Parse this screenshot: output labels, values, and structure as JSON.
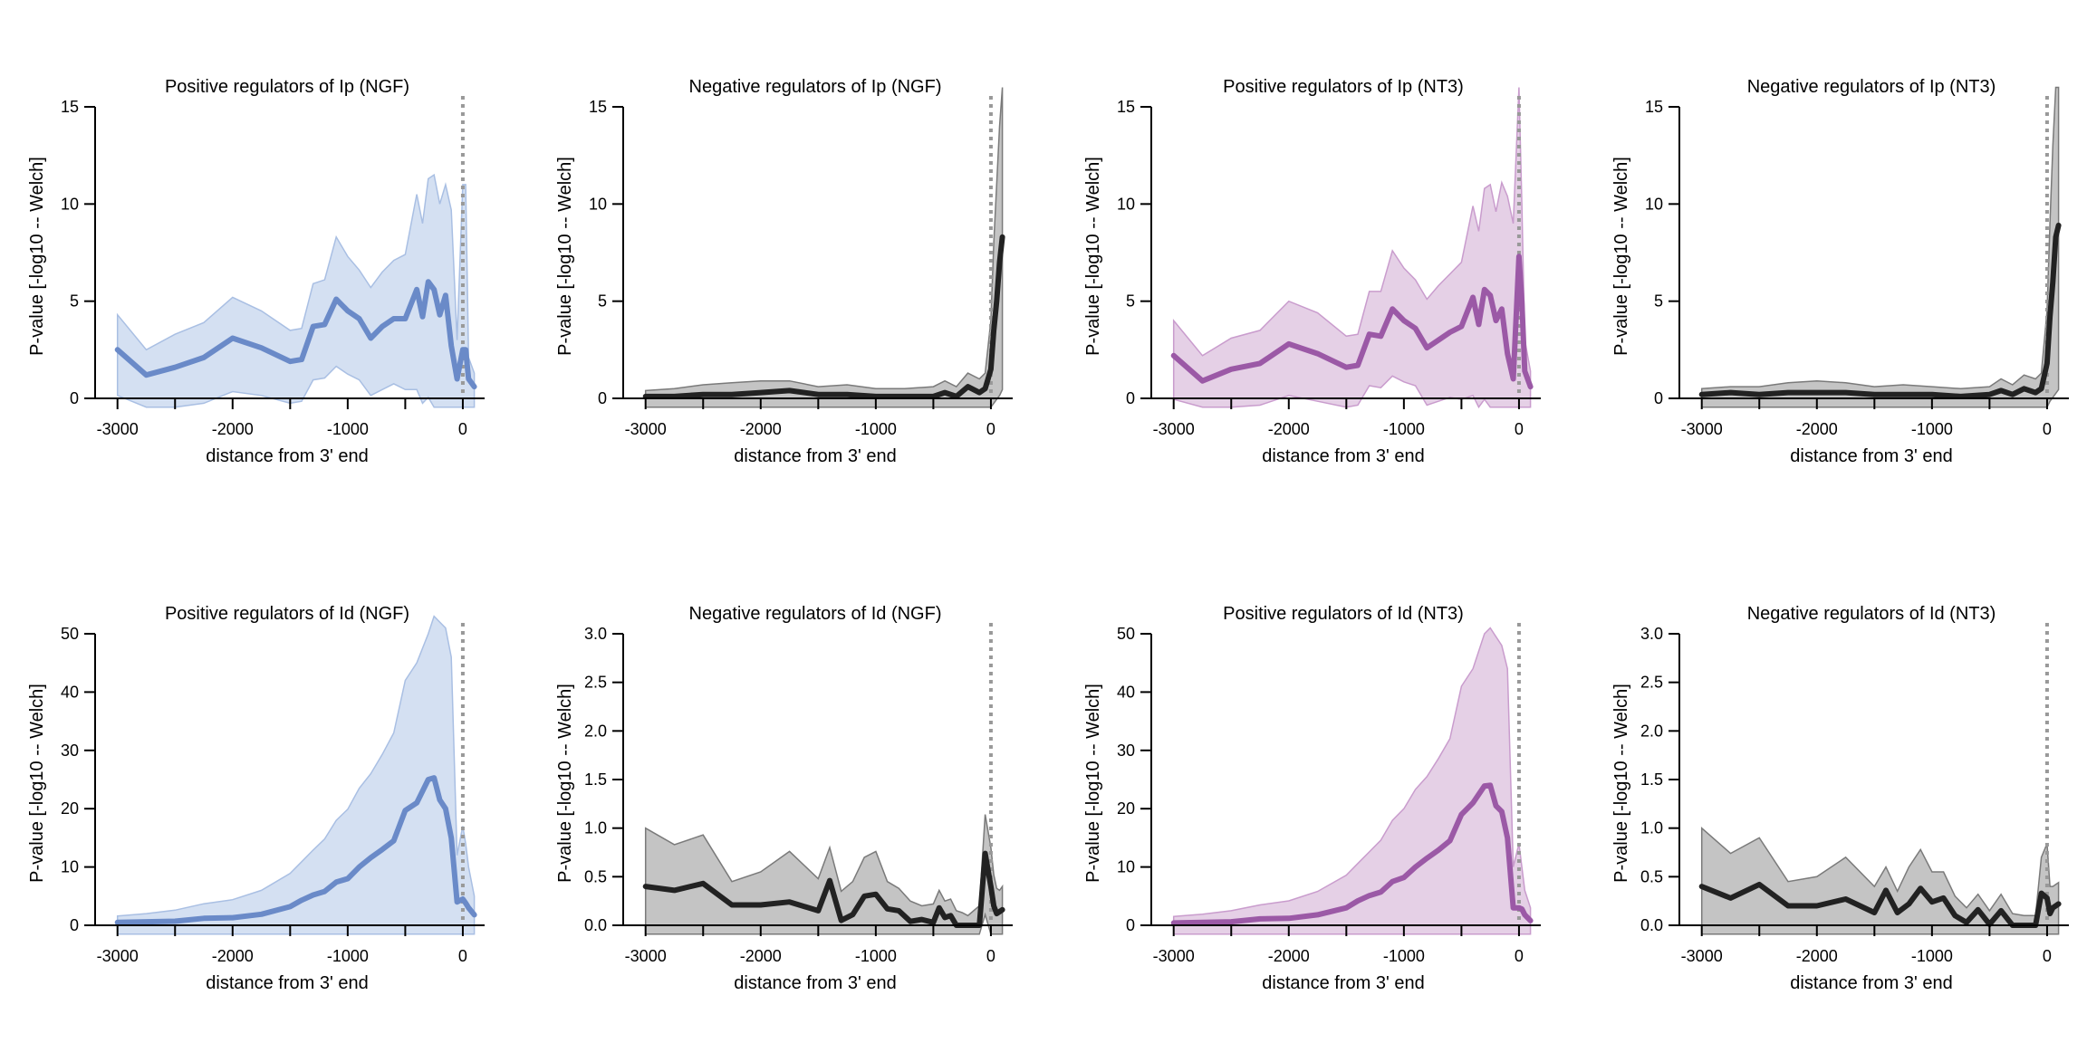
{
  "colors": {
    "blue_line": "#6a8ac8",
    "blue_fill": "#d4e0f2",
    "blue_edge": "#a9bfe3",
    "purple_line": "#9b59a6",
    "purple_fill": "#e5d0e6",
    "purple_edge": "#c99ccd",
    "black_line": "#222222",
    "gray_fill": "#c4c4c4",
    "gray_edge": "#7a7a7a",
    "vline": "#999999"
  },
  "chart_data": [
    {
      "type": "area",
      "title": "Positive regulators of Ip (NGF)",
      "xlabel": "distance from 3' end",
      "ylabel": "P-value [-log10 -- Welch]",
      "xlim": [
        -3100,
        150
      ],
      "ylim": [
        0,
        15
      ],
      "xticks": [
        -3000,
        -2000,
        -1000,
        0
      ],
      "xtick_labels": [
        "-3000",
        "-2000",
        "-1000",
        "0"
      ],
      "yticks": [
        0,
        5,
        10,
        15
      ],
      "ytick_labels": [
        "0",
        "5",
        "10",
        "15"
      ],
      "vline_x": 0,
      "color": "blue",
      "x": [
        -3000,
        -2750,
        -2500,
        -2250,
        -2000,
        -1750,
        -1500,
        -1400,
        -1300,
        -1200,
        -1100,
        -1000,
        -900,
        -800,
        -700,
        -600,
        -500,
        -400,
        -350,
        -300,
        -250,
        -200,
        -150,
        -100,
        -50,
        0,
        25,
        50,
        100
      ],
      "y": [
        2.5,
        1.2,
        1.6,
        2.1,
        3.1,
        2.6,
        1.9,
        2.0,
        3.7,
        3.8,
        5.1,
        4.5,
        4.1,
        3.1,
        3.7,
        4.1,
        4.1,
        5.6,
        4.2,
        6.0,
        5.6,
        4.3,
        5.3,
        2.7,
        1.0,
        2.5,
        2.5,
        1.0,
        0.6
      ],
      "upper": [
        4.3,
        2.5,
        3.3,
        3.9,
        5.2,
        4.5,
        3.5,
        3.6,
        5.9,
        6.1,
        8.3,
        7.3,
        6.6,
        5.7,
        6.5,
        7.1,
        7.4,
        10.5,
        9.0,
        11.3,
        11.5,
        10.0,
        11.0,
        9.7,
        3.0,
        11.0,
        11.0,
        2.1,
        1.3
      ],
      "lower": [
        0.6,
        0.0,
        0.0,
        0.2,
        0.8,
        0.6,
        0.2,
        0.3,
        1.4,
        1.5,
        2.1,
        1.7,
        1.4,
        0.6,
        0.9,
        1.2,
        0.9,
        0.9,
        0.2,
        0.5,
        0.0,
        0.0,
        0.0,
        0.0,
        0.0,
        0.0,
        0.0,
        0.0,
        0.0
      ]
    },
    {
      "type": "area",
      "title": "Negative regulators of Ip (NGF)",
      "xlabel": "distance from 3' end",
      "ylabel": "P-value [-log10 -- Welch]",
      "xlim": [
        -3100,
        150
      ],
      "ylim": [
        0,
        15
      ],
      "xticks": [
        -3000,
        -2000,
        -1000,
        0
      ],
      "xtick_labels": [
        "-3000",
        "-2000",
        "-1000",
        "0"
      ],
      "yticks": [
        0,
        5,
        10,
        15
      ],
      "ytick_labels": [
        "0",
        "5",
        "10",
        "15"
      ],
      "vline_x": 0,
      "color": "black",
      "x": [
        -3000,
        -2750,
        -2500,
        -2250,
        -2000,
        -1750,
        -1500,
        -1250,
        -1000,
        -750,
        -500,
        -400,
        -300,
        -200,
        -100,
        -50,
        0,
        25,
        50,
        75,
        100
      ],
      "y": [
        0.1,
        0.1,
        0.2,
        0.2,
        0.3,
        0.4,
        0.2,
        0.2,
        0.1,
        0.1,
        0.1,
        0.3,
        0.1,
        0.6,
        0.3,
        0.5,
        1.5,
        3.5,
        5.0,
        7.0,
        8.3
      ],
      "upper": [
        0.4,
        0.5,
        0.7,
        0.8,
        0.9,
        0.9,
        0.6,
        0.7,
        0.5,
        0.5,
        0.6,
        0.9,
        0.6,
        1.3,
        1.0,
        1.3,
        4.0,
        8.0,
        11.0,
        14.0,
        16.0
      ],
      "lower": [
        0.0,
        0.0,
        0.0,
        0.0,
        0.0,
        0.0,
        0.0,
        0.0,
        0.0,
        0.0,
        0.0,
        0.0,
        0.0,
        0.0,
        0.0,
        0.0,
        0.0,
        0.2,
        0.4,
        0.6,
        0.9
      ]
    },
    {
      "type": "area",
      "title": "Positive regulators of Ip (NT3)",
      "xlabel": "distance from 3' end",
      "ylabel": "P-value [-log10 -- Welch]",
      "xlim": [
        -3100,
        150
      ],
      "ylim": [
        0,
        15
      ],
      "xticks": [
        -3000,
        -2000,
        -1000,
        0
      ],
      "xtick_labels": [
        "-3000",
        "-2000",
        "-1000",
        "0"
      ],
      "yticks": [
        0,
        5,
        10,
        15
      ],
      "ytick_labels": [
        "0",
        "5",
        "10",
        "15"
      ],
      "vline_x": 0,
      "color": "purple",
      "x": [
        -3000,
        -2750,
        -2500,
        -2250,
        -2000,
        -1750,
        -1500,
        -1400,
        -1300,
        -1200,
        -1100,
        -1000,
        -900,
        -800,
        -700,
        -600,
        -500,
        -400,
        -350,
        -300,
        -250,
        -200,
        -150,
        -100,
        -50,
        0,
        25,
        50,
        100
      ],
      "y": [
        2.2,
        0.9,
        1.5,
        1.8,
        2.8,
        2.3,
        1.6,
        1.7,
        3.3,
        3.2,
        4.6,
        4.0,
        3.6,
        2.6,
        3.0,
        3.4,
        3.7,
        5.2,
        3.8,
        5.6,
        5.3,
        4.0,
        4.6,
        2.3,
        1.0,
        7.3,
        5.0,
        1.4,
        0.6
      ],
      "upper": [
        4.0,
        2.2,
        3.1,
        3.5,
        5.0,
        4.4,
        3.2,
        3.3,
        5.5,
        5.5,
        7.6,
        6.7,
        6.1,
        5.1,
        5.8,
        6.4,
        7.0,
        9.9,
        8.6,
        10.8,
        11.0,
        9.6,
        11.1,
        10.4,
        9.0,
        16.0,
        10.0,
        3.0,
        1.4
      ],
      "lower": [
        0.4,
        0.0,
        0.0,
        0.1,
        0.6,
        0.3,
        0.0,
        0.1,
        1.1,
        1.0,
        1.6,
        1.3,
        1.1,
        0.1,
        0.3,
        0.5,
        0.4,
        0.6,
        0.0,
        0.4,
        0.0,
        0.0,
        0.0,
        0.0,
        0.0,
        0.0,
        0.0,
        0.0,
        0.0
      ]
    },
    {
      "type": "area",
      "title": "Negative regulators of Ip (NT3)",
      "xlabel": "distance from 3' end",
      "ylabel": "P-value [-log10 -- Welch]",
      "xlim": [
        -3100,
        150
      ],
      "ylim": [
        0,
        15
      ],
      "xticks": [
        -3000,
        -2000,
        -1000,
        0
      ],
      "xtick_labels": [
        "-3000",
        "-2000",
        "-1000",
        "0"
      ],
      "yticks": [
        0,
        5,
        10,
        15
      ],
      "ytick_labels": [
        "0",
        "5",
        "10",
        "15"
      ],
      "vline_x": 0,
      "color": "black",
      "x": [
        -3000,
        -2750,
        -2500,
        -2250,
        -2000,
        -1750,
        -1500,
        -1250,
        -1000,
        -750,
        -500,
        -400,
        -300,
        -200,
        -100,
        -50,
        0,
        25,
        50,
        75,
        100
      ],
      "y": [
        0.2,
        0.3,
        0.2,
        0.3,
        0.3,
        0.3,
        0.2,
        0.2,
        0.2,
        0.1,
        0.2,
        0.4,
        0.2,
        0.5,
        0.3,
        0.5,
        1.8,
        4.2,
        6.0,
        8.3,
        8.9
      ],
      "upper": [
        0.5,
        0.6,
        0.6,
        0.8,
        0.9,
        0.8,
        0.6,
        0.7,
        0.6,
        0.5,
        0.6,
        1.0,
        0.7,
        1.2,
        1.0,
        1.3,
        4.5,
        9.0,
        13.0,
        16.0,
        16.0
      ],
      "lower": [
        0.0,
        0.0,
        0.0,
        0.0,
        0.0,
        0.0,
        0.0,
        0.0,
        0.0,
        0.0,
        0.0,
        0.0,
        0.0,
        0.0,
        0.0,
        0.0,
        0.0,
        0.3,
        0.5,
        0.7,
        0.9
      ]
    },
    {
      "type": "area",
      "title": "Positive regulators of Id (NGF)",
      "xlabel": "distance from 3' end",
      "ylabel": "P-value [-log10 -- Welch]",
      "xlim": [
        -3100,
        150
      ],
      "ylim": [
        0,
        50
      ],
      "xticks": [
        -3000,
        -2000,
        -1000,
        0
      ],
      "xtick_labels": [
        "-3000",
        "-2000",
        "-1000",
        "0"
      ],
      "yticks": [
        0,
        10,
        20,
        30,
        40,
        50
      ],
      "ytick_labels": [
        "0",
        "10",
        "20",
        "30",
        "40",
        "50"
      ],
      "vline_x": 0,
      "color": "blue",
      "x": [
        -3000,
        -2750,
        -2500,
        -2250,
        -2000,
        -1750,
        -1500,
        -1400,
        -1300,
        -1200,
        -1100,
        -1000,
        -900,
        -800,
        -700,
        -600,
        -500,
        -400,
        -300,
        -250,
        -200,
        -150,
        -100,
        -50,
        0,
        25,
        50,
        100
      ],
      "y": [
        0.5,
        0.6,
        0.7,
        1.2,
        1.3,
        1.9,
        3.2,
        4.3,
        5.2,
        5.8,
        7.4,
        8.0,
        10.0,
        11.6,
        13.0,
        14.5,
        19.7,
        21.0,
        25.0,
        25.3,
        21.5,
        20.0,
        15.0,
        4.0,
        4.5,
        3.8,
        3.0,
        1.8
      ],
      "upper": [
        1.6,
        2.0,
        2.6,
        3.7,
        4.4,
        6.0,
        8.9,
        10.9,
        12.9,
        14.8,
        18.0,
        19.9,
        23.5,
        26.0,
        29.3,
        33.0,
        42.0,
        45.0,
        50.0,
        53.0,
        52.0,
        51.0,
        46.0,
        12.0,
        17.0,
        14.0,
        10.0,
        5.0
      ],
      "lower": [
        0.0,
        0.0,
        0.0,
        0.0,
        0.0,
        0.0,
        0.0,
        0.0,
        0.0,
        0.0,
        0.0,
        0.0,
        0.0,
        0.0,
        0.0,
        0.0,
        0.0,
        0.0,
        0.0,
        0.0,
        0.0,
        0.0,
        0.0,
        0.0,
        0.0,
        0.0,
        0.0,
        0.0
      ]
    },
    {
      "type": "area",
      "title": "Negative regulators of Id (NGF)",
      "xlabel": "distance from 3' end",
      "ylabel": "P-value [-log10 -- Welch]",
      "xlim": [
        -3100,
        150
      ],
      "ylim": [
        0,
        3.0
      ],
      "xticks": [
        -3000,
        -2000,
        -1000,
        0
      ],
      "xtick_labels": [
        "-3000",
        "-2000",
        "-1000",
        "0"
      ],
      "yticks": [
        0,
        0.5,
        1.0,
        1.5,
        2.0,
        2.5,
        3.0
      ],
      "ytick_labels": [
        "0.0",
        "0.5",
        "1.0",
        "1.5",
        "2.0",
        "2.5",
        "3.0"
      ],
      "vline_x": 0,
      "color": "black",
      "x": [
        -3000,
        -2750,
        -2500,
        -2250,
        -2000,
        -1750,
        -1500,
        -1400,
        -1300,
        -1200,
        -1100,
        -1000,
        -900,
        -800,
        -700,
        -600,
        -500,
        -450,
        -400,
        -350,
        -300,
        -250,
        -200,
        -100,
        -50,
        0,
        25,
        50,
        75,
        100
      ],
      "y": [
        0.4,
        0.36,
        0.43,
        0.21,
        0.21,
        0.24,
        0.15,
        0.46,
        0.05,
        0.11,
        0.3,
        0.32,
        0.17,
        0.15,
        0.04,
        0.06,
        0.03,
        0.18,
        0.08,
        0.1,
        0.0,
        0.0,
        0.0,
        0.0,
        0.74,
        0.4,
        0.2,
        0.12,
        0.14,
        0.16
      ],
      "upper": [
        1.0,
        0.83,
        0.93,
        0.45,
        0.55,
        0.76,
        0.48,
        0.8,
        0.35,
        0.45,
        0.7,
        0.76,
        0.45,
        0.38,
        0.25,
        0.2,
        0.22,
        0.36,
        0.25,
        0.27,
        0.15,
        0.13,
        0.1,
        0.2,
        1.14,
        0.8,
        0.52,
        0.38,
        0.36,
        0.4
      ],
      "lower": [
        0.0,
        0.0,
        0.0,
        0.0,
        0.0,
        0.0,
        0.0,
        0.0,
        0.0,
        0.0,
        0.0,
        0.0,
        0.0,
        0.0,
        0.0,
        0.0,
        0.0,
        0.0,
        0.0,
        0.0,
        0.0,
        0.0,
        0.0,
        0.0,
        0.2,
        0.0,
        0.0,
        0.0,
        0.0,
        0.0
      ]
    },
    {
      "type": "area",
      "title": "Positive regulators of Id (NT3)",
      "xlabel": "distance from 3' end",
      "ylabel": "P-value [-log10 -- Welch]",
      "xlim": [
        -3100,
        150
      ],
      "ylim": [
        0,
        50
      ],
      "xticks": [
        -3000,
        -2000,
        -1000,
        0
      ],
      "xtick_labels": [
        "-3000",
        "-2000",
        "-1000",
        "0"
      ],
      "yticks": [
        0,
        10,
        20,
        30,
        40,
        50
      ],
      "ytick_labels": [
        "0",
        "10",
        "20",
        "30",
        "40",
        "50"
      ],
      "vline_x": 0,
      "color": "purple",
      "x": [
        -3000,
        -2750,
        -2500,
        -2250,
        -2000,
        -1750,
        -1500,
        -1400,
        -1300,
        -1200,
        -1100,
        -1000,
        -900,
        -800,
        -700,
        -600,
        -500,
        -400,
        -300,
        -250,
        -200,
        -150,
        -100,
        -50,
        0,
        25,
        50,
        100
      ],
      "y": [
        0.4,
        0.5,
        0.6,
        1.1,
        1.2,
        1.8,
        3.0,
        4.2,
        5.1,
        5.7,
        7.5,
        8.2,
        10.0,
        11.5,
        12.9,
        14.5,
        19.0,
        21.0,
        23.9,
        24.0,
        20.5,
        19.5,
        15.0,
        3.0,
        3.0,
        2.8,
        1.8,
        0.8
      ],
      "upper": [
        1.5,
        1.9,
        2.5,
        3.5,
        4.2,
        5.8,
        8.6,
        10.6,
        12.6,
        14.6,
        18.0,
        20.0,
        23.3,
        25.5,
        28.6,
        32.0,
        41.0,
        44.0,
        50.0,
        51.0,
        49.5,
        48.0,
        44.0,
        10.0,
        14.0,
        10.0,
        6.0,
        3.0
      ],
      "lower": [
        0.0,
        0.0,
        0.0,
        0.0,
        0.0,
        0.0,
        0.0,
        0.0,
        0.0,
        0.0,
        0.0,
        0.0,
        0.0,
        0.0,
        0.0,
        0.0,
        0.0,
        0.0,
        0.0,
        0.0,
        0.0,
        0.0,
        0.0,
        0.0,
        0.0,
        0.0,
        0.0,
        0.0
      ]
    },
    {
      "type": "area",
      "title": "Negative regulators of Id (NT3)",
      "xlabel": "distance from 3' end",
      "ylabel": "P-value [-log10 -- Welch]",
      "xlim": [
        -3100,
        150
      ],
      "ylim": [
        0,
        3.0
      ],
      "xticks": [
        -3000,
        -2000,
        -1000,
        0
      ],
      "xtick_labels": [
        "-3000",
        "-2000",
        "-1000",
        "0"
      ],
      "yticks": [
        0,
        0.5,
        1.0,
        1.5,
        2.0,
        2.5,
        3.0
      ],
      "ytick_labels": [
        "0.0",
        "0.5",
        "1.0",
        "1.5",
        "2.0",
        "2.5",
        "3.0"
      ],
      "vline_x": 0,
      "color": "black",
      "x": [
        -3000,
        -2750,
        -2500,
        -2250,
        -2000,
        -1750,
        -1500,
        -1400,
        -1300,
        -1200,
        -1100,
        -1000,
        -900,
        -800,
        -700,
        -600,
        -500,
        -400,
        -300,
        -200,
        -100,
        -50,
        0,
        25,
        50,
        75,
        100
      ],
      "y": [
        0.4,
        0.28,
        0.42,
        0.2,
        0.2,
        0.27,
        0.13,
        0.36,
        0.13,
        0.22,
        0.38,
        0.24,
        0.28,
        0.1,
        0.03,
        0.16,
        0.01,
        0.15,
        0.0,
        0.0,
        0.0,
        0.33,
        0.28,
        0.12,
        0.18,
        0.2,
        0.22
      ],
      "upper": [
        1.0,
        0.74,
        0.9,
        0.45,
        0.5,
        0.7,
        0.4,
        0.6,
        0.35,
        0.6,
        0.78,
        0.55,
        0.55,
        0.3,
        0.18,
        0.32,
        0.15,
        0.32,
        0.12,
        0.1,
        0.1,
        0.7,
        0.84,
        0.4,
        0.4,
        0.42,
        0.44
      ],
      "lower": [
        0.0,
        0.0,
        0.0,
        0.0,
        0.0,
        0.0,
        0.0,
        0.0,
        0.0,
        0.0,
        0.0,
        0.0,
        0.0,
        0.0,
        0.0,
        0.0,
        0.0,
        0.0,
        0.0,
        0.0,
        0.0,
        0.0,
        0.0,
        0.0,
        0.0,
        0.0,
        0.0
      ]
    }
  ]
}
